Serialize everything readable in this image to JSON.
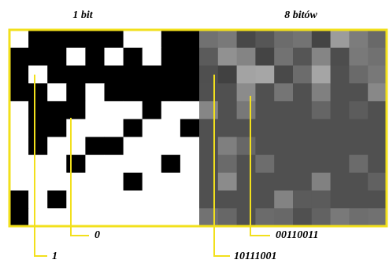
{
  "titles": {
    "left": "1 bit",
    "right": "8 bitów"
  },
  "callouts": [
    {
      "label": "1"
    },
    {
      "label": "0"
    },
    {
      "label": "10111001"
    },
    {
      "label": "00110011"
    }
  ]
}
